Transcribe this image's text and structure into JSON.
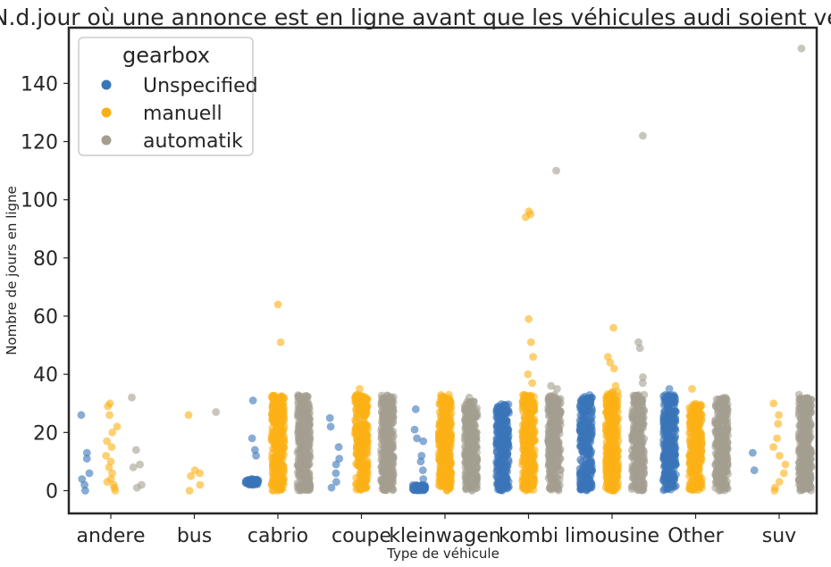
{
  "chart_data": {
    "type": "scatter",
    "variant": "strip",
    "title": "N.d.jour où une annonce est en ligne avant que les véhicules audi soient vendus",
    "xlabel": "Type de véhicule",
    "ylabel": "Nombre de jours en ligne",
    "categories": [
      "andere",
      "bus",
      "cabrio",
      "coupe",
      "kleinwagen",
      "kombi",
      "limousine",
      "Other",
      "suv"
    ],
    "ylim": [
      -7,
      160
    ],
    "yticks": [
      0,
      20,
      40,
      60,
      80,
      100,
      120,
      140
    ],
    "grid": false,
    "legend": {
      "title": "gearbox",
      "position": "top-left"
    },
    "series": [
      {
        "name": "Unspecified",
        "color": "#3a75b9",
        "dense": [
          {
            "category": "cabrio",
            "min": 2,
            "max": 4
          },
          {
            "category": "kleinwagen",
            "min": 0,
            "max": 2
          },
          {
            "category": "kombi",
            "min": 0,
            "max": 30
          },
          {
            "category": "limousine",
            "min": 0,
            "max": 33
          },
          {
            "category": "Other",
            "min": 0,
            "max": 33
          }
        ],
        "points": [
          {
            "category": "andere",
            "y": 26
          },
          {
            "category": "andere",
            "y": 13
          },
          {
            "category": "andere",
            "y": 11
          },
          {
            "category": "andere",
            "y": 6
          },
          {
            "category": "andere",
            "y": 4
          },
          {
            "category": "andere",
            "y": 2
          },
          {
            "category": "andere",
            "y": 0
          },
          {
            "category": "cabrio",
            "y": 31
          },
          {
            "category": "cabrio",
            "y": 18
          },
          {
            "category": "cabrio",
            "y": 14
          },
          {
            "category": "cabrio",
            "y": 12
          },
          {
            "category": "coupe",
            "y": 25
          },
          {
            "category": "coupe",
            "y": 22
          },
          {
            "category": "coupe",
            "y": 15
          },
          {
            "category": "coupe",
            "y": 11
          },
          {
            "category": "coupe",
            "y": 9
          },
          {
            "category": "coupe",
            "y": 6
          },
          {
            "category": "coupe",
            "y": 3
          },
          {
            "category": "coupe",
            "y": 1
          },
          {
            "category": "kleinwagen",
            "y": 28
          },
          {
            "category": "kleinwagen",
            "y": 21
          },
          {
            "category": "kleinwagen",
            "y": 18
          },
          {
            "category": "kleinwagen",
            "y": 17
          },
          {
            "category": "kleinwagen",
            "y": 12
          },
          {
            "category": "kleinwagen",
            "y": 10
          },
          {
            "category": "kleinwagen",
            "y": 7
          },
          {
            "category": "kleinwagen",
            "y": 4
          },
          {
            "category": "Other",
            "y": 35
          },
          {
            "category": "suv",
            "y": 13
          },
          {
            "category": "suv",
            "y": 7
          }
        ]
      },
      {
        "name": "manuell",
        "color": "#fbb016",
        "dense": [
          {
            "category": "cabrio",
            "min": 0,
            "max": 33
          },
          {
            "category": "coupe",
            "min": 0,
            "max": 33
          },
          {
            "category": "kleinwagen",
            "min": 0,
            "max": 33
          },
          {
            "category": "kombi",
            "min": 0,
            "max": 33
          },
          {
            "category": "limousine",
            "min": 0,
            "max": 34
          },
          {
            "category": "Other",
            "min": 0,
            "max": 30
          }
        ],
        "points": [
          {
            "category": "andere",
            "y": 30
          },
          {
            "category": "andere",
            "y": 29
          },
          {
            "category": "andere",
            "y": 26
          },
          {
            "category": "andere",
            "y": 22
          },
          {
            "category": "andere",
            "y": 20
          },
          {
            "category": "andere",
            "y": 17
          },
          {
            "category": "andere",
            "y": 15
          },
          {
            "category": "andere",
            "y": 12
          },
          {
            "category": "andere",
            "y": 10
          },
          {
            "category": "andere",
            "y": 8
          },
          {
            "category": "andere",
            "y": 6
          },
          {
            "category": "andere",
            "y": 4
          },
          {
            "category": "andere",
            "y": 3
          },
          {
            "category": "andere",
            "y": 2
          },
          {
            "category": "andere",
            "y": 1
          },
          {
            "category": "andere",
            "y": 0
          },
          {
            "category": "bus",
            "y": 26
          },
          {
            "category": "bus",
            "y": 7
          },
          {
            "category": "bus",
            "y": 6
          },
          {
            "category": "bus",
            "y": 5
          },
          {
            "category": "bus",
            "y": 2
          },
          {
            "category": "bus",
            "y": 0
          },
          {
            "category": "cabrio",
            "y": 64
          },
          {
            "category": "cabrio",
            "y": 51
          },
          {
            "category": "coupe",
            "y": 35
          },
          {
            "category": "kombi",
            "y": 96
          },
          {
            "category": "kombi",
            "y": 95
          },
          {
            "category": "kombi",
            "y": 94
          },
          {
            "category": "kombi",
            "y": 59
          },
          {
            "category": "kombi",
            "y": 51
          },
          {
            "category": "kombi",
            "y": 46
          },
          {
            "category": "kombi",
            "y": 40
          },
          {
            "category": "kombi",
            "y": 37
          },
          {
            "category": "limousine",
            "y": 56
          },
          {
            "category": "limousine",
            "y": 46
          },
          {
            "category": "limousine",
            "y": 44
          },
          {
            "category": "limousine",
            "y": 42
          },
          {
            "category": "limousine",
            "y": 36
          },
          {
            "category": "Other",
            "y": 35
          },
          {
            "category": "suv",
            "y": 30
          },
          {
            "category": "suv",
            "y": 26
          },
          {
            "category": "suv",
            "y": 23
          },
          {
            "category": "suv",
            "y": 18
          },
          {
            "category": "suv",
            "y": 15
          },
          {
            "category": "suv",
            "y": 12
          },
          {
            "category": "suv",
            "y": 9
          },
          {
            "category": "suv",
            "y": 6
          },
          {
            "category": "suv",
            "y": 3
          },
          {
            "category": "suv",
            "y": 1
          },
          {
            "category": "suv",
            "y": 0
          }
        ]
      },
      {
        "name": "automatik",
        "color": "#a39e8f",
        "dense": [
          {
            "category": "cabrio",
            "min": 0,
            "max": 33
          },
          {
            "category": "coupe",
            "min": 0,
            "max": 33
          },
          {
            "category": "kleinwagen",
            "min": 0,
            "max": 31
          },
          {
            "category": "kombi",
            "min": 0,
            "max": 33
          },
          {
            "category": "limousine",
            "min": 0,
            "max": 33
          },
          {
            "category": "Other",
            "min": 0,
            "max": 32
          },
          {
            "category": "suv",
            "min": 0,
            "max": 32
          }
        ],
        "points": [
          {
            "category": "andere",
            "y": 32
          },
          {
            "category": "andere",
            "y": 14
          },
          {
            "category": "andere",
            "y": 9
          },
          {
            "category": "andere",
            "y": 8
          },
          {
            "category": "andere",
            "y": 2
          },
          {
            "category": "andere",
            "y": 1
          },
          {
            "category": "bus",
            "y": 27
          },
          {
            "category": "kleinwagen",
            "y": 32
          },
          {
            "category": "kombi",
            "y": 110
          },
          {
            "category": "kombi",
            "y": 36
          },
          {
            "category": "kombi",
            "y": 35
          },
          {
            "category": "limousine",
            "y": 122
          },
          {
            "category": "limousine",
            "y": 51
          },
          {
            "category": "limousine",
            "y": 49
          },
          {
            "category": "limousine",
            "y": 39
          },
          {
            "category": "limousine",
            "y": 37
          },
          {
            "category": "suv",
            "y": 152
          },
          {
            "category": "suv",
            "y": 33
          }
        ]
      }
    ]
  }
}
